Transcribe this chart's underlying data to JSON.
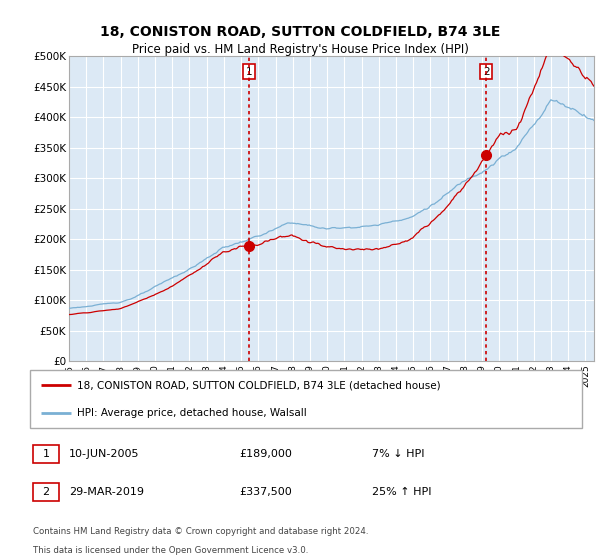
{
  "title": "18, CONISTON ROAD, SUTTON COLDFIELD, B74 3LE",
  "subtitle": "Price paid vs. HM Land Registry's House Price Index (HPI)",
  "ylabel_ticks": [
    "£0",
    "£50K",
    "£100K",
    "£150K",
    "£200K",
    "£250K",
    "£300K",
    "£350K",
    "£400K",
    "£450K",
    "£500K"
  ],
  "ytick_values": [
    0,
    50000,
    100000,
    150000,
    200000,
    250000,
    300000,
    350000,
    400000,
    450000,
    500000
  ],
  "ylim": [
    0,
    500000
  ],
  "xlim_start": 1995.0,
  "xlim_end": 2025.5,
  "plot_bg": "#dce9f5",
  "line1_color": "#cc0000",
  "line2_color": "#7ab0d4",
  "marker_color": "#cc0000",
  "vline_color": "#cc0000",
  "grid_color": "#ffffff",
  "purchase1_date_x": 2005.44,
  "purchase1_price": 189000,
  "purchase2_date_x": 2019.24,
  "purchase2_price": 337500,
  "legend_line1": "18, CONISTON ROAD, SUTTON COLDFIELD, B74 3LE (detached house)",
  "legend_line2": "HPI: Average price, detached house, Walsall",
  "footnote3": "Contains HM Land Registry data © Crown copyright and database right 2024.",
  "footnote4": "This data is licensed under the Open Government Licence v3.0.",
  "xtick_years": [
    1995,
    1996,
    1997,
    1998,
    1999,
    2000,
    2001,
    2002,
    2003,
    2004,
    2005,
    2006,
    2007,
    2008,
    2009,
    2010,
    2011,
    2012,
    2013,
    2014,
    2015,
    2016,
    2017,
    2018,
    2019,
    2020,
    2021,
    2022,
    2023,
    2024,
    2025
  ]
}
